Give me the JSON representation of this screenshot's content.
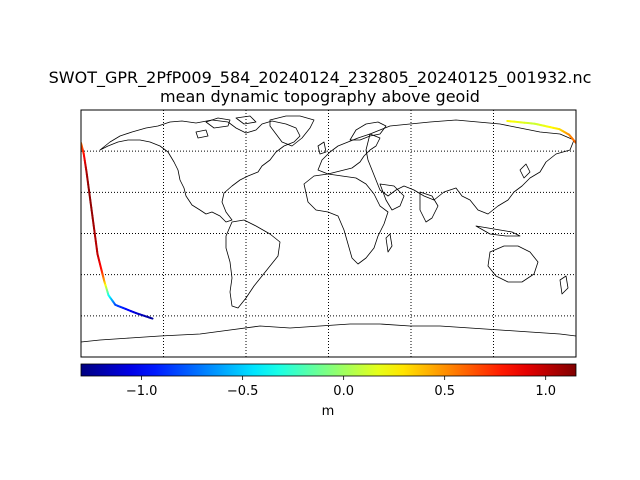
{
  "chart_data": {
    "type": "map",
    "title": "SWOT_GPR_2PfP009_584_20240124_232805_20240125_001932.nc",
    "subtitle": "mean dynamic topography above geoid",
    "projection": "plate carree",
    "gridlines": "dotted",
    "grid_lon": [
      -180,
      -120,
      -60,
      0,
      60,
      120,
      180
    ],
    "grid_lat": [
      -90,
      -60,
      -30,
      0,
      30,
      60,
      90
    ],
    "colormap": "jet",
    "vmin": -1.3,
    "vmax": 1.15,
    "colorbar": {
      "ticks": [
        -1.0,
        -0.5,
        0.0,
        0.5,
        1.0
      ],
      "tick_labels": [
        "−1.0",
        "−0.5",
        "0.0",
        "0.5",
        "1.0"
      ],
      "label": "m"
    },
    "track": {
      "note": "satellite ground track colored by value",
      "points": [
        {
          "lon": -180,
          "lat": 66,
          "value": 0.55
        },
        {
          "lon": -178,
          "lat": 58,
          "value": 0.8
        },
        {
          "lon": -176,
          "lat": 45,
          "value": 1.05
        },
        {
          "lon": -174,
          "lat": 30,
          "value": 1.12
        },
        {
          "lon": -172,
          "lat": 15,
          "value": 1.1
        },
        {
          "lon": -170,
          "lat": 0,
          "value": 1.05
        },
        {
          "lon": -168,
          "lat": -15,
          "value": 1.0
        },
        {
          "lon": -165,
          "lat": -27,
          "value": 0.8
        },
        {
          "lon": -163,
          "lat": -35,
          "value": 0.45
        },
        {
          "lon": -160,
          "lat": -45,
          "value": -0.3
        },
        {
          "lon": -155,
          "lat": -52,
          "value": -0.8
        },
        {
          "lon": -140,
          "lat": -58,
          "value": -1.1
        },
        {
          "lon": -128,
          "lat": -62,
          "value": -1.25
        }
      ]
    },
    "track_north": {
      "points": [
        {
          "lon": 130,
          "lat": 82,
          "value": 0.25
        },
        {
          "lon": 150,
          "lat": 80,
          "value": 0.1
        },
        {
          "lon": 168,
          "lat": 76,
          "value": 0.3
        },
        {
          "lon": 175,
          "lat": 72,
          "value": 0.5
        },
        {
          "lon": 180,
          "lat": 66,
          "value": 0.6
        }
      ]
    }
  }
}
